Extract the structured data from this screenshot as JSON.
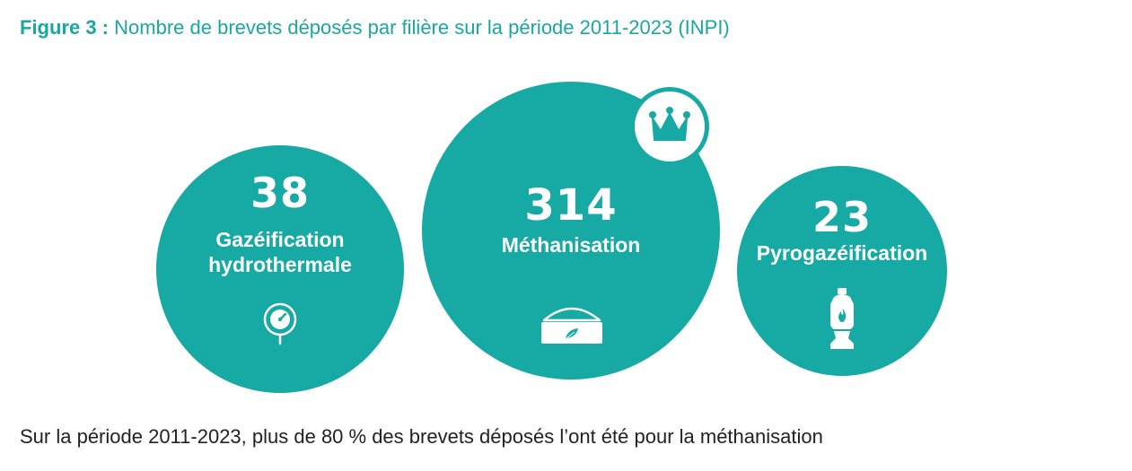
{
  "caption": {
    "label": "Figure 3 :",
    "text": "Nombre de brevets déposés par filière sur la période 2011-2023 (INPI)"
  },
  "footer": "Sur la période 2011-2023, plus de 80 % des brevets déposés l’ont été pour la méthanisation",
  "colors": {
    "bubble": "#17a9a3",
    "caption": "#1aa6a1",
    "text_on_bubble": "#ffffff"
  },
  "chart_data": {
    "type": "bubble",
    "title": "Nombre de brevets déposés par filière sur la période 2011-2023 (INPI)",
    "categories": [
      "Gazéification hydrothermale",
      "Méthanisation",
      "Pyrogazéification"
    ],
    "values": [
      38,
      314,
      23
    ],
    "highlight": "Méthanisation",
    "icons": [
      "pressure-gauge-icon",
      "biogas-digester-icon",
      "gas-cylinder-icon"
    ]
  },
  "bubbles": [
    {
      "value": "38",
      "line1": "Gazéification",
      "line2": "hydrothermale",
      "icon": "pressure-gauge-icon"
    },
    {
      "value": "314",
      "line1": "Méthanisation",
      "line2": "",
      "icon": "biogas-digester-icon"
    },
    {
      "value": "23",
      "line1": "Pyrogazéification",
      "line2": "",
      "icon": "gas-cylinder-icon"
    }
  ],
  "badge": {
    "icon": "crown-icon"
  }
}
